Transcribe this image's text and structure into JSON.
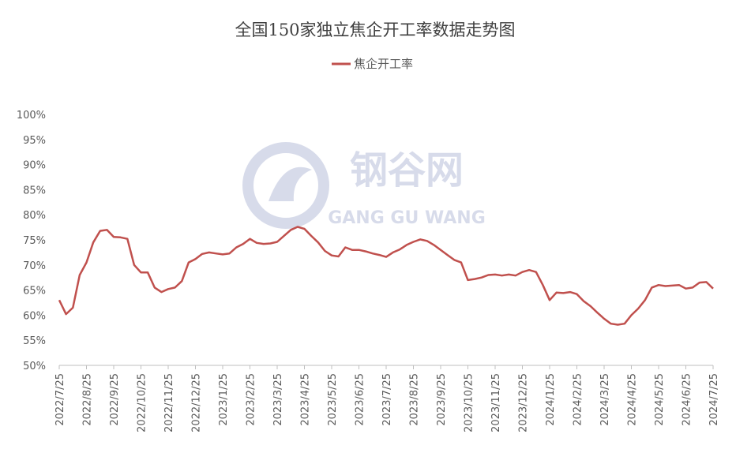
{
  "chart_data": {
    "type": "line",
    "title": "全国150家独立焦企开工率数据走势图",
    "watermark": [
      "钢谷网",
      "GANG GU WANG"
    ],
    "categories": [
      "2022/7/25",
      null,
      null,
      null,
      "2022/8/25",
      null,
      null,
      null,
      "2022/9/25",
      null,
      null,
      null,
      "2022/10/25",
      null,
      null,
      null,
      "2022/11/25",
      null,
      null,
      null,
      "2022/12/25",
      null,
      null,
      null,
      "2023/1/25",
      null,
      null,
      null,
      "2023/2/25",
      null,
      null,
      null,
      "2023/3/25",
      null,
      null,
      null,
      "2023/4/25",
      null,
      null,
      null,
      "2023/5/25",
      null,
      null,
      null,
      "2023/6/25",
      null,
      null,
      null,
      "2023/7/25",
      null,
      null,
      null,
      "2023/8/25",
      null,
      null,
      null,
      "2023/9/25",
      null,
      null,
      null,
      "2023/10/25",
      null,
      null,
      null,
      "2023/11/25",
      null,
      null,
      null,
      "2023/12/25",
      null,
      null,
      null,
      "2024/1/25",
      null,
      null,
      null,
      "2024/2/25",
      null,
      null,
      null,
      "2024/3/25",
      null,
      null,
      null,
      "2024/4/25",
      null,
      null,
      null,
      "2024/5/25",
      null,
      null,
      null,
      "2024/6/25",
      null,
      null,
      null,
      "2024/7/25"
    ],
    "series": [
      {
        "name": "焦企开工率",
        "color": "#c0504d",
        "values": [
          63,
          60.2,
          61.5,
          68,
          70.5,
          74.5,
          76.8,
          77,
          75.6,
          75.5,
          75.2,
          70,
          68.5,
          68.5,
          65.5,
          64.6,
          65.2,
          65.5,
          66.8,
          70.5,
          71.2,
          72.2,
          72.5,
          72.3,
          72.1,
          72.3,
          73.5,
          74.2,
          75.2,
          74.4,
          74.2,
          74.3,
          74.6,
          75.8,
          77,
          77.6,
          77.2,
          75.8,
          74.5,
          72.8,
          71.9,
          71.7,
          73.5,
          73,
          73,
          72.7,
          72.3,
          72,
          71.6,
          72.5,
          73.1,
          74,
          74.6,
          75.1,
          74.8,
          74,
          73,
          72,
          71,
          70.5,
          67,
          67.2,
          67.5,
          68,
          68.1,
          67.9,
          68.1,
          67.9,
          68.6,
          69,
          68.6,
          66,
          63,
          64.5,
          64.4,
          64.6,
          64.2,
          62.8,
          61.8,
          60.5,
          59.3,
          58.3,
          58.1,
          58.3,
          60,
          61.3,
          63,
          65.5,
          66,
          65.8,
          65.9,
          66,
          65.3,
          65.5,
          66.5,
          66.6,
          65.3
        ]
      }
    ],
    "ylim": [
      50,
      100
    ],
    "yticks": [
      {
        "value": 50,
        "label": "50%"
      },
      {
        "value": 55,
        "label": "55%"
      },
      {
        "value": 60,
        "label": "60%"
      },
      {
        "value": 65,
        "label": "65%"
      },
      {
        "value": 70,
        "label": "70%"
      },
      {
        "value": 75,
        "label": "75%"
      },
      {
        "value": 80,
        "label": "80%"
      },
      {
        "value": 85,
        "label": "85%"
      },
      {
        "value": 90,
        "label": "90%"
      },
      {
        "value": 95,
        "label": "95%"
      },
      {
        "value": 100,
        "label": "100%"
      }
    ],
    "grid": false,
    "legend": "top"
  }
}
